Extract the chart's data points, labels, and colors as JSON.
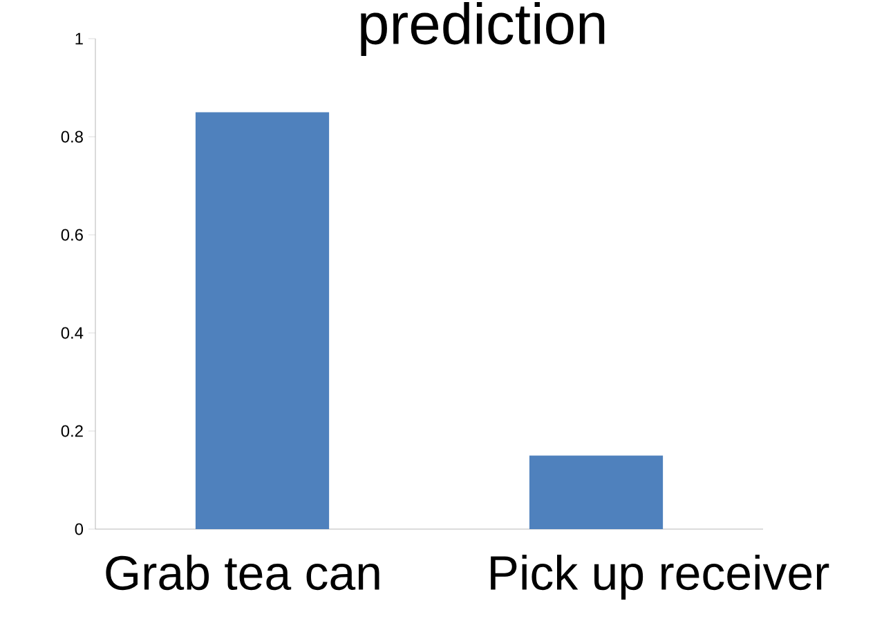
{
  "chart_data": {
    "type": "bar",
    "title": "prediction",
    "categories": [
      "Grab tea can",
      "Pick up receiver"
    ],
    "values": [
      0.85,
      0.15
    ],
    "color": "#4f81bd",
    "ylim": [
      0,
      1
    ],
    "yticks": [
      0,
      0.2,
      0.4,
      0.6,
      0.8,
      1
    ],
    "grid": false
  }
}
